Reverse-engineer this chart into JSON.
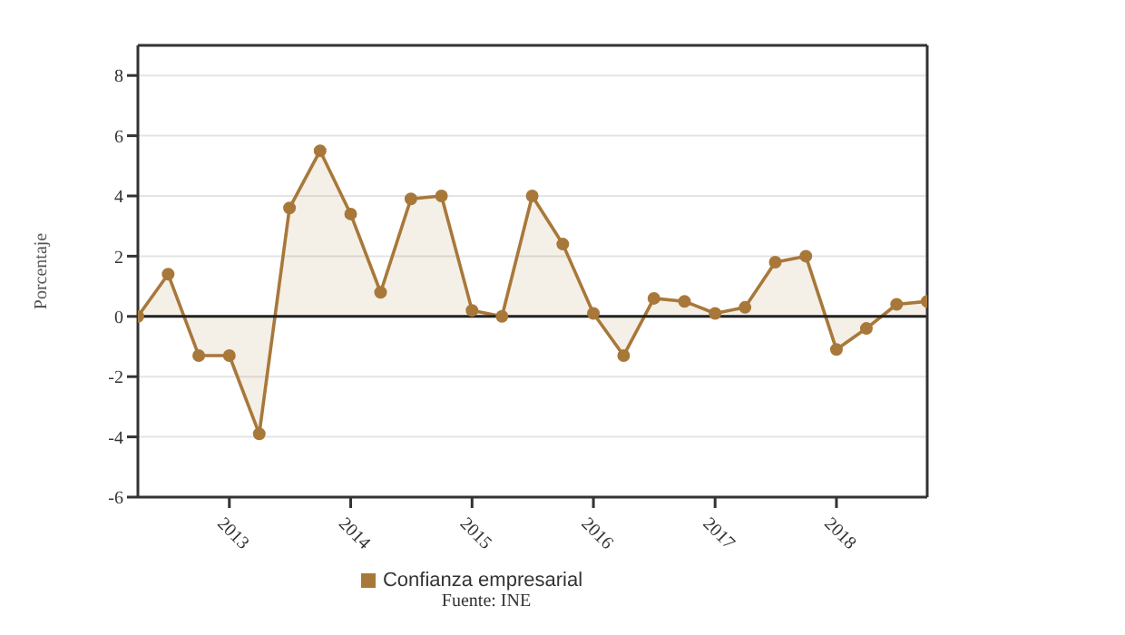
{
  "chart_data": {
    "type": "area",
    "ylabel": "Porcentaje",
    "x": [
      "2012-04",
      "2012-07",
      "2012-10",
      "2013-01",
      "2013-04",
      "2013-07",
      "2013-10",
      "2014-01",
      "2014-04",
      "2014-07",
      "2014-10",
      "2015-01",
      "2015-04",
      "2015-07",
      "2015-10",
      "2016-01",
      "2016-04",
      "2016-07",
      "2016-10",
      "2017-01",
      "2017-04",
      "2017-07",
      "2017-10",
      "2018-01",
      "2018-04",
      "2018-07",
      "2018-10"
    ],
    "series": [
      {
        "name": "Confianza empresarial",
        "color": "#a8783a",
        "values": [
          0,
          1.4,
          -1.3,
          -1.3,
          -3.9,
          3.6,
          5.5,
          3.4,
          0.8,
          3.9,
          4.0,
          0.2,
          0.0,
          4.0,
          2.4,
          0.1,
          -1.3,
          0.6,
          0.5,
          0.1,
          0.3,
          1.8,
          2.0,
          -1.1,
          -0.4,
          0.4,
          0.5
        ]
      }
    ],
    "xlim": [
      "2012-04",
      "2018-10"
    ],
    "xticks": [
      "2013",
      "2014",
      "2015",
      "2016",
      "2017",
      "2018"
    ],
    "ylim": [
      -6,
      9
    ],
    "yticks": [
      -6,
      -4,
      -2,
      0,
      2,
      4,
      6,
      8
    ],
    "ref_lines": [
      {
        "axis": "y",
        "value": 0
      }
    ],
    "grid": "y",
    "legend": "bottom",
    "marker": "circle",
    "annotations": [
      "Fuente: INE"
    ]
  }
}
